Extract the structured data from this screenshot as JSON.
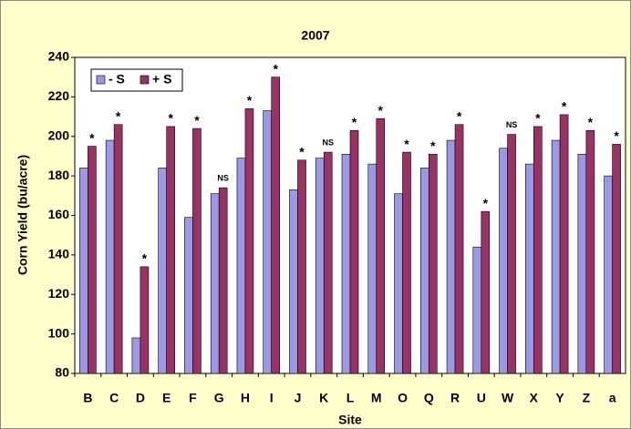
{
  "chart_data": {
    "type": "bar",
    "title": "2007",
    "x_label": "Site",
    "y_label": "Corn Yield (bu/acre)",
    "categories": [
      "B",
      "C",
      "D",
      "E",
      "F",
      "G",
      "H",
      "I",
      "J",
      "K",
      "L",
      "M",
      "O",
      "Q",
      "R",
      "U",
      "W",
      "X",
      "Y",
      "Z",
      "a"
    ],
    "series": [
      {
        "name": "- S",
        "color": "#9999e6",
        "values": [
          184,
          198,
          98,
          184,
          159,
          171,
          189,
          213,
          173,
          189,
          191,
          186,
          171,
          184,
          198,
          144,
          194,
          186,
          198,
          191,
          180
        ]
      },
      {
        "name": "+ S",
        "color": "#993366",
        "values": [
          195,
          206,
          134,
          205,
          204,
          174,
          214,
          230,
          188,
          192,
          203,
          209,
          192,
          191,
          206,
          162,
          201,
          205,
          211,
          203,
          196
        ]
      }
    ],
    "annotations": [
      "*",
      "*",
      "*",
      "*",
      "*",
      "NS",
      "*",
      "*",
      "*",
      "NS",
      "*",
      "*",
      "*",
      "*",
      "*",
      "*",
      "NS",
      "*",
      "*",
      "*",
      "*"
    ],
    "ylim": [
      80,
      240
    ],
    "yticks": [
      80,
      100,
      120,
      140,
      160,
      180,
      200,
      220,
      240
    ],
    "grid": false,
    "legend": "upper left"
  }
}
